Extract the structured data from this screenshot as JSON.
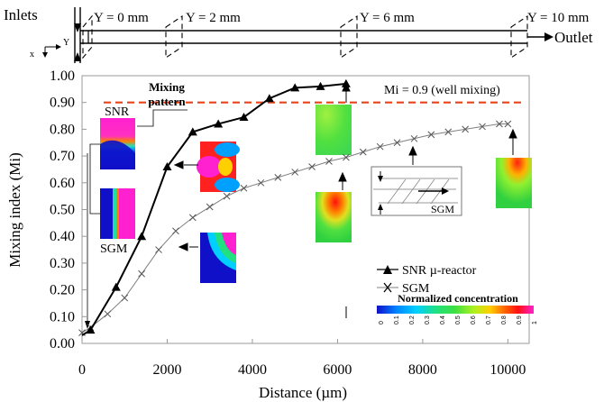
{
  "chart_data": {
    "type": "line",
    "xlabel": "Distance (µm)",
    "ylabel": "Mixing index (Mi)",
    "xlim": [
      0,
      10500
    ],
    "ylim": [
      0,
      1.0
    ],
    "x_ticks": [
      "0",
      "2000",
      "4000",
      "6000",
      "8000",
      "10000"
    ],
    "y_ticks": [
      "0.00",
      "0.10",
      "0.20",
      "0.30",
      "0.40",
      "0.50",
      "0.60",
      "0.70",
      "0.80",
      "0.90",
      "1.00"
    ],
    "grid": false,
    "legend_position": "bottom-right",
    "series": [
      {
        "name": "SNR µ-reactor",
        "marker": "triangle",
        "color": "#000000",
        "x": [
          0,
          200,
          800,
          1400,
          2000,
          2600,
          3200,
          3800,
          4400,
          5000,
          5600,
          6200
        ],
        "y": [
          0.03,
          0.05,
          0.21,
          0.4,
          0.66,
          0.79,
          0.82,
          0.845,
          0.915,
          0.955,
          0.96,
          0.97
        ]
      },
      {
        "name": "SGM",
        "marker": "cross",
        "color": "#808080",
        "x": [
          0,
          200,
          600,
          1000,
          1400,
          1800,
          2200,
          2600,
          3000,
          3400,
          3800,
          4200,
          4600,
          5000,
          5400,
          5800,
          6200,
          6600,
          7000,
          7400,
          7800,
          8200,
          8600,
          9000,
          9400,
          9800,
          10000
        ],
        "y": [
          0.04,
          0.06,
          0.11,
          0.17,
          0.26,
          0.35,
          0.42,
          0.47,
          0.51,
          0.55,
          0.58,
          0.6,
          0.62,
          0.64,
          0.66,
          0.68,
          0.695,
          0.715,
          0.735,
          0.75,
          0.765,
          0.78,
          0.79,
          0.8,
          0.81,
          0.82,
          0.82
        ]
      }
    ],
    "reference_line": {
      "y": 0.9,
      "label": "Mi = 0.9 (well mixing)",
      "color": "#e8441a"
    },
    "annotations": {
      "mixing_pattern": "Mixing\npattern",
      "snr": "SNR",
      "sgm": "SGM",
      "sgm_inset": "SGM"
    },
    "colorbar": {
      "title": "Normalized concentration",
      "ticks": [
        "0",
        "0.1",
        "0.2",
        "0.3",
        "0.4",
        "0.5",
        "0.6",
        "0.7",
        "0.8",
        "0.9",
        "1"
      ]
    }
  },
  "schematic": {
    "inlets": "Inlets",
    "outlet": "Outlet",
    "axis_x": "x",
    "axis_y": "Y",
    "positions": [
      "Y = 0 mm",
      "Y = 2 mm",
      "Y = 6 mm",
      "Y = 10 mm"
    ]
  }
}
